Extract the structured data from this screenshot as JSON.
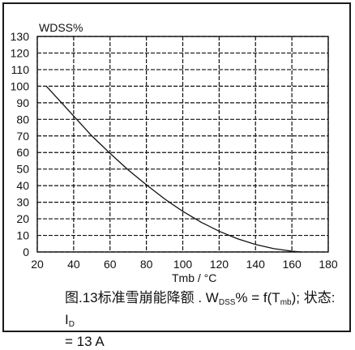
{
  "chart_data": {
    "type": "line",
    "ylabel": "WDSS%",
    "xlabel": "Tmb / °C",
    "xlim": [
      20,
      180
    ],
    "ylim": [
      0,
      130
    ],
    "xticks": [
      20,
      40,
      60,
      80,
      100,
      120,
      140,
      160,
      180
    ],
    "yticks": [
      0,
      10,
      20,
      30,
      40,
      50,
      60,
      70,
      80,
      90,
      100,
      110,
      120,
      130
    ],
    "grid": true,
    "series": [
      {
        "x": [
          25,
          30,
          40,
          50,
          60,
          70,
          80,
          90,
          100,
          110,
          120,
          130,
          140,
          150,
          160,
          165
        ],
        "y": [
          100,
          94,
          82,
          70,
          59.5,
          49.5,
          40.5,
          32,
          24.5,
          18,
          12.5,
          8,
          4.5,
          2,
          0.5,
          0
        ]
      }
    ]
  },
  "caption": {
    "prefix": "图.13标准雪崩能降额 . W",
    "sub1": "DSS",
    "mid": "% = f(T",
    "sub2": "mb",
    "after": "); 状态: I",
    "sub3": "D",
    "line2": "= 13 A"
  }
}
